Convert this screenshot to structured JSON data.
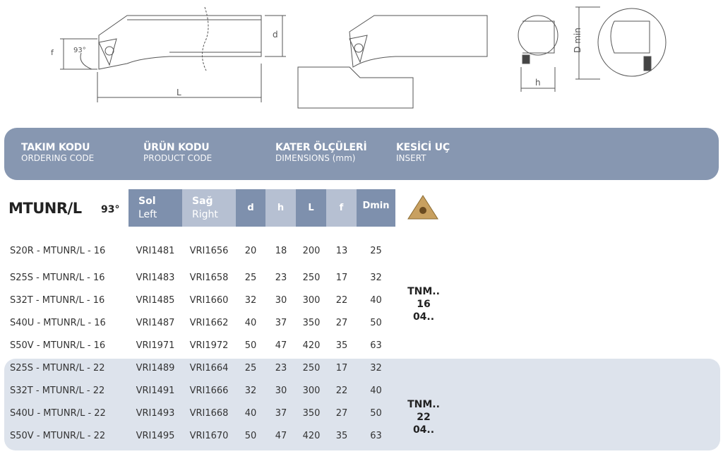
{
  "header": {
    "columns": [
      {
        "title": "TAKIM KODU",
        "subtitle": "ORDERING CODE"
      },
      {
        "title": "ÜRÜN KODU",
        "subtitle": "PRODUCT CODE"
      },
      {
        "title": "KATER ÖLÇÜLERİ",
        "subtitle": "DIMENSIONS (mm)"
      },
      {
        "title": "KESİCİ UÇ",
        "subtitle": "INSERT"
      }
    ]
  },
  "drawing_labels": {
    "f": "f",
    "angle": "93°",
    "L": "L",
    "d": "d",
    "h": "h",
    "dmin": "D min"
  },
  "product": {
    "name": "MTUNR/L",
    "angle": "93°"
  },
  "table_headers": {
    "sol": "Sol",
    "left": "Left",
    "sag": "Sağ",
    "right": "Right",
    "d": "d",
    "h": "h",
    "L": "L",
    "f": "f",
    "dmin": "Dmin"
  },
  "rows": [
    {
      "code": "S20R - MTUNR/L - 16",
      "sol": "VRI1481",
      "sag": "VRI1656",
      "d": "20",
      "h": "18",
      "L": "200",
      "f": "13",
      "dmin": "25"
    },
    {
      "code": "S25S - MTUNR/L - 16",
      "sol": "VRI1483",
      "sag": "VRI1658",
      "d": "25",
      "h": "23",
      "L": "250",
      "f": "17",
      "dmin": "32"
    },
    {
      "code": "S32T - MTUNR/L - 16",
      "sol": "VRI1485",
      "sag": "VRI1660",
      "d": "32",
      "h": "30",
      "L": "300",
      "f": "22",
      "dmin": "40"
    },
    {
      "code": "S40U - MTUNR/L - 16",
      "sol": "VRI1487",
      "sag": "VRI1662",
      "d": "40",
      "h": "37",
      "L": "350",
      "f": "27",
      "dmin": "50"
    },
    {
      "code": "S50V - MTUNR/L - 16",
      "sol": "VRI1971",
      "sag": "VRI1972",
      "d": "50",
      "h": "47",
      "L": "420",
      "f": "35",
      "dmin": "63"
    },
    {
      "code": "S25S - MTUNR/L - 22",
      "sol": "VRI1489",
      "sag": "VRI1664",
      "d": "25",
      "h": "23",
      "L": "250",
      "f": "17",
      "dmin": "32"
    },
    {
      "code": "S32T - MTUNR/L - 22",
      "sol": "VRI1491",
      "sag": "VRI1666",
      "d": "32",
      "h": "30",
      "L": "300",
      "f": "22",
      "dmin": "40"
    },
    {
      "code": "S40U - MTUNR/L - 22",
      "sol": "VRI1493",
      "sag": "VRI1668",
      "d": "40",
      "h": "37",
      "L": "350",
      "f": "27",
      "dmin": "50"
    },
    {
      "code": "S50V - MTUNR/L - 22",
      "sol": "VRI1495",
      "sag": "VRI1670",
      "d": "50",
      "h": "47",
      "L": "420",
      "f": "35",
      "dmin": "63"
    }
  ],
  "inserts": [
    {
      "line1": "TNM..",
      "line2": "16 04.."
    },
    {
      "line1": "TNM..",
      "line2": "22 04.."
    }
  ],
  "colors": {
    "header_bar": "#8797b1",
    "dark_col": "#7e90ad",
    "light_col": "#b6c0d2",
    "group_band": "#dde3ec",
    "insert_gold": "#c8a060"
  }
}
